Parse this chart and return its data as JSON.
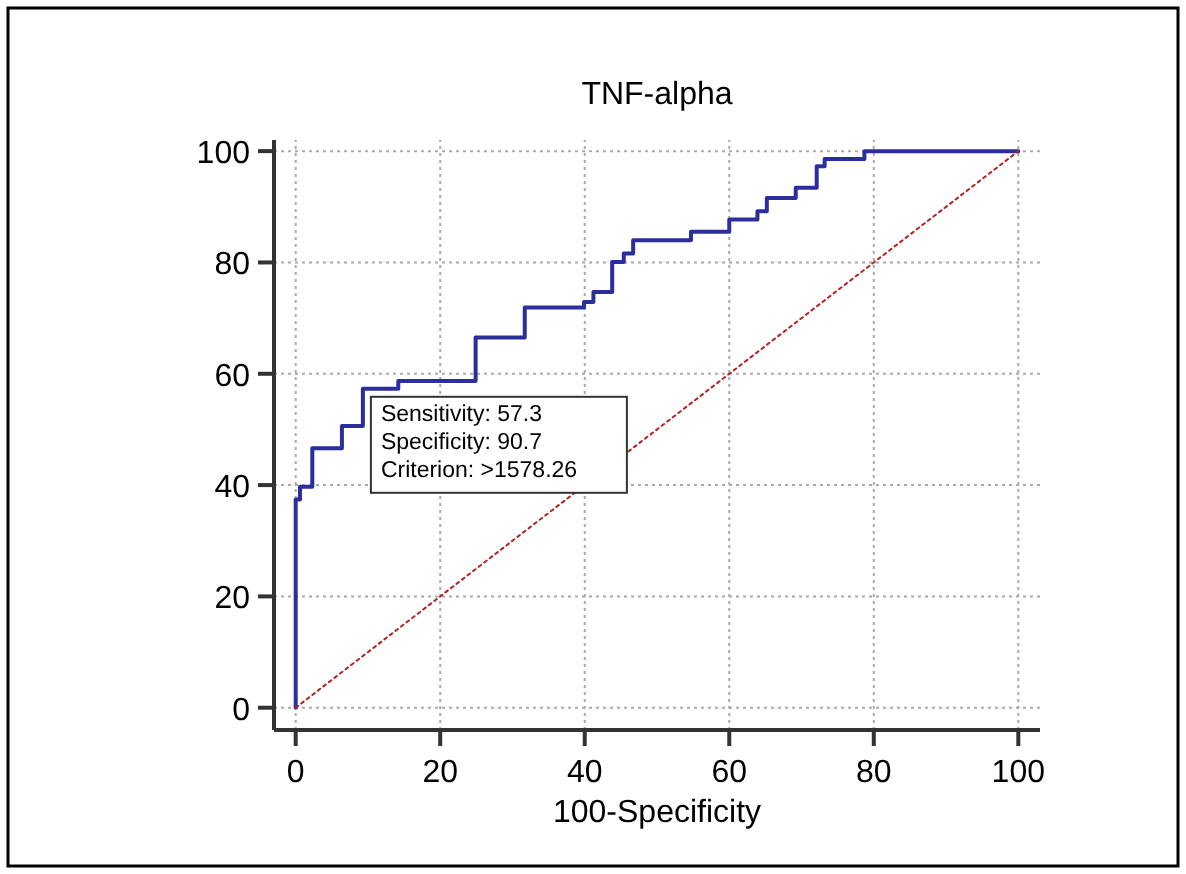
{
  "chart_data": {
    "type": "step",
    "title": "TNF-alpha",
    "xlabel": "100-Specificity",
    "xlim": [
      -3,
      103
    ],
    "ylim": [
      -4,
      102
    ],
    "xticks": [
      0,
      20,
      40,
      60,
      80,
      100
    ],
    "yticks": [
      0,
      20,
      40,
      60,
      80,
      100
    ],
    "grid": true,
    "series": [
      {
        "color": "#2b2f9e",
        "x": [
          0,
          0,
          0.6,
          2.3,
          6.4,
          9.3,
          14.2,
          24.9,
          31.7,
          39.9,
          41.2,
          43.8,
          45.4,
          46.7,
          54.7,
          60,
          63.9,
          65.2,
          69.2,
          72.1,
          73.2,
          78.7,
          100
        ],
        "values": [
          0,
          37.4,
          39.7,
          46.6,
          50.6,
          57.3,
          58.7,
          66.5,
          71.9,
          72.9,
          74.7,
          80.1,
          81.6,
          84,
          85.5,
          87.7,
          89.2,
          91.6,
          93.4,
          97.3,
          98.6,
          100,
          100
        ]
      },
      {
        "type": "line",
        "color": "#b22222",
        "line_style": "dotted",
        "x": [
          0,
          100
        ],
        "values": [
          0,
          100
        ]
      }
    ],
    "annotations": [
      {
        "text": "Sensitivity: 57.3\nSpecificity: 90.7\nCriterion: >1578.26",
        "x": 9.3,
        "y": 57.3
      }
    ]
  }
}
